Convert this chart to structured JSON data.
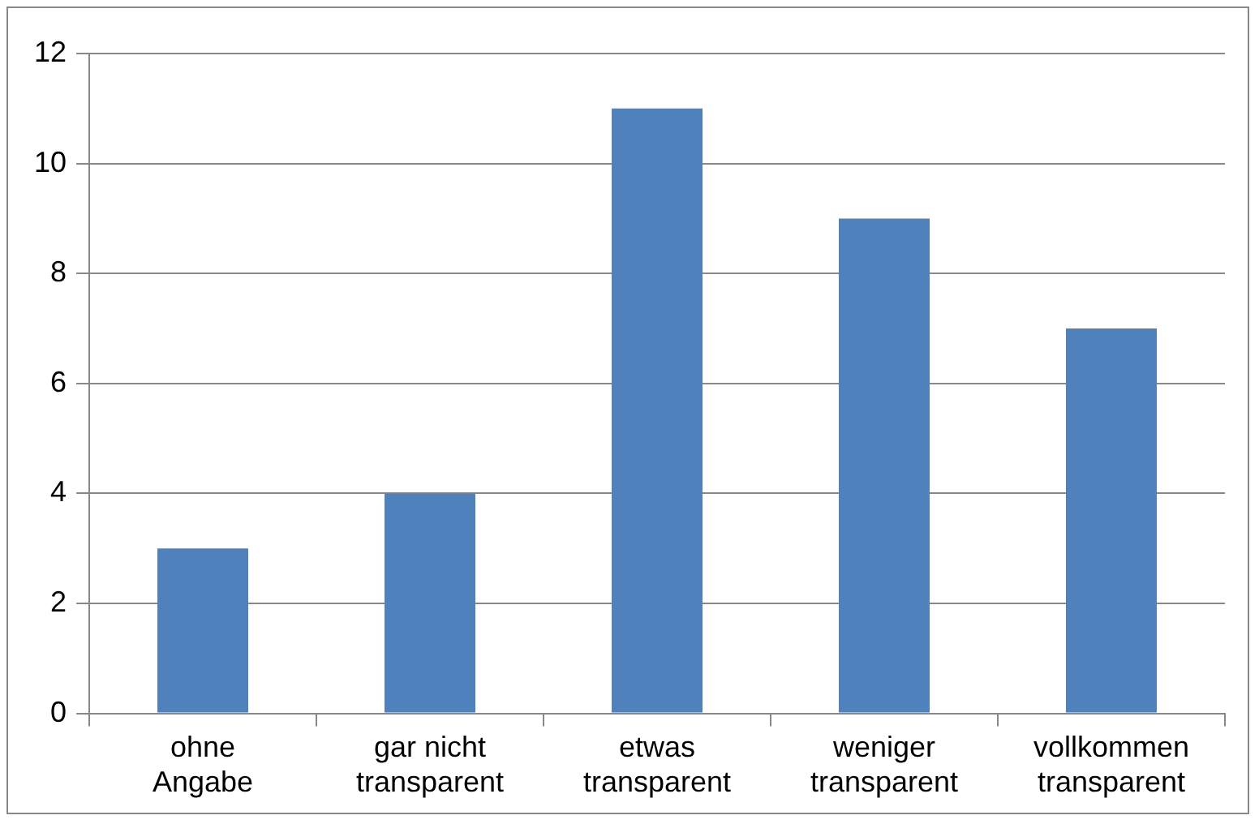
{
  "chart_data": {
    "type": "bar",
    "categories": [
      "ohne Angabe",
      "gar nicht transparent",
      "etwas transparent",
      "weniger transparent",
      "vollkommen transparent"
    ],
    "values": [
      3,
      4,
      11,
      9,
      7
    ],
    "color": "#4f81bd",
    "ylim": [
      0,
      12
    ],
    "yticks": [
      0,
      2,
      4,
      6,
      8,
      10,
      12
    ],
    "grid": "y",
    "legend": false
  }
}
